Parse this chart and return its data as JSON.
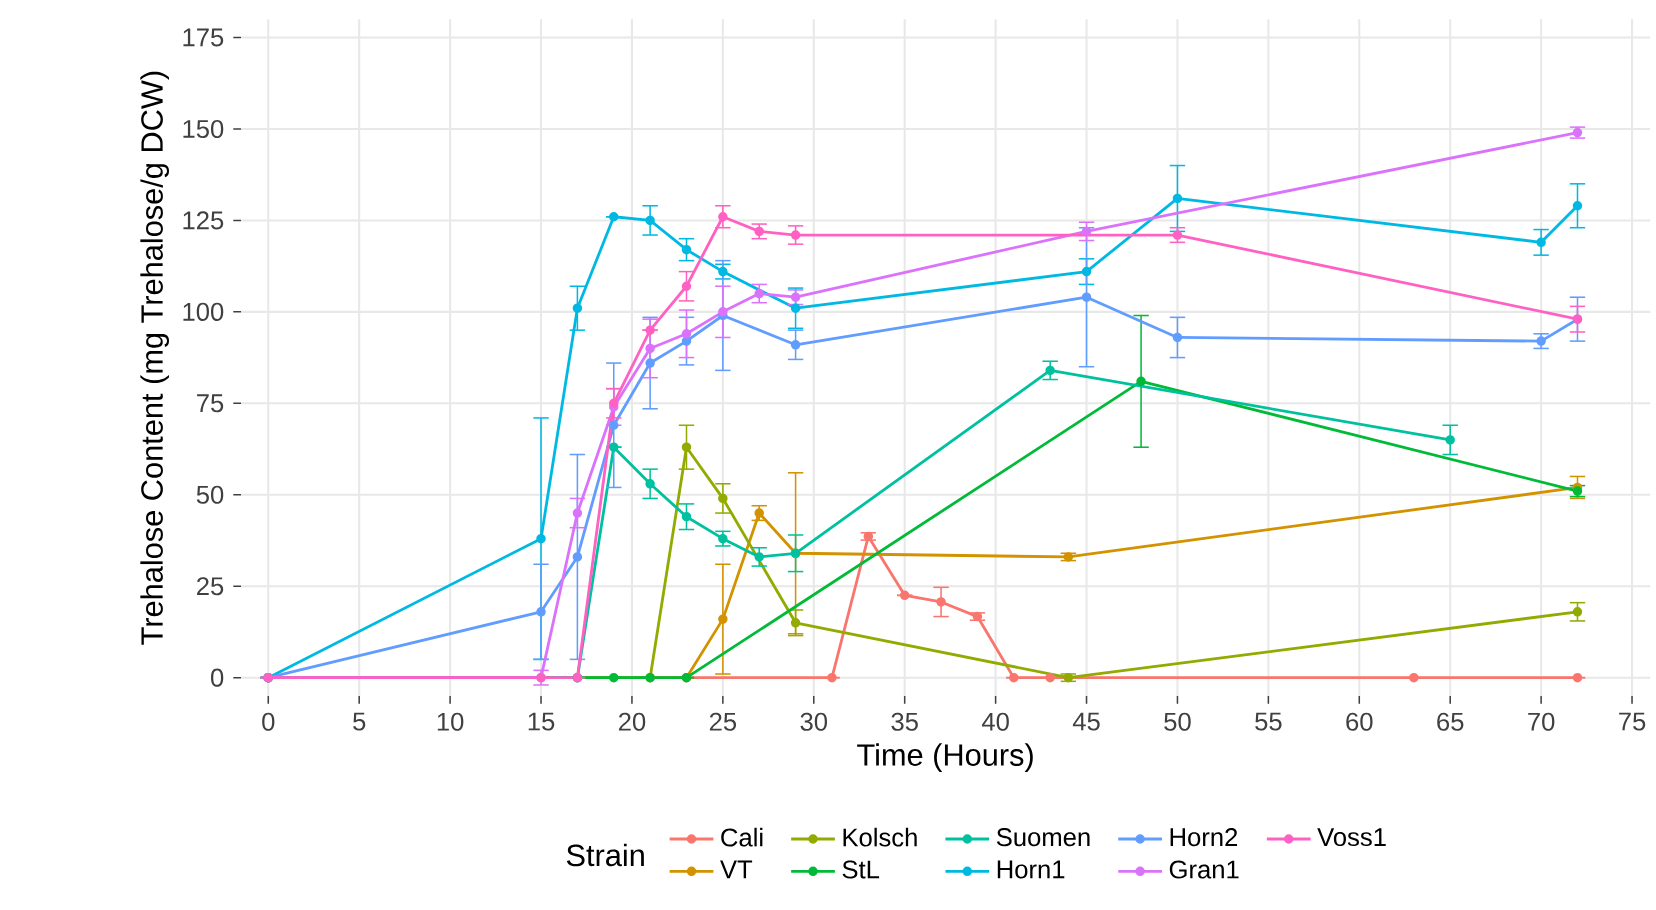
{
  "chart_data": {
    "type": "line",
    "xlabel": "Time (Hours)",
    "ylabel": "Trehalose Content (mg Trehalose/g DCW)",
    "legend_title": "Strain",
    "legend": "bottom",
    "grid": true,
    "marker": "circle",
    "line_style": "solid",
    "xlim": [
      -1.5,
      76
    ],
    "ylim": [
      -5,
      180
    ],
    "xticks": [
      0,
      5,
      10,
      15,
      20,
      25,
      30,
      35,
      40,
      45,
      50,
      55,
      60,
      65,
      70,
      75
    ],
    "yticks": [
      0,
      25,
      50,
      75,
      100,
      125,
      150,
      175
    ],
    "series": [
      {
        "name": "Cali",
        "color": "#f8766d",
        "x": [
          0,
          31,
          33,
          35,
          37,
          39,
          41,
          43,
          63,
          72
        ],
        "values": [
          0,
          0,
          38.6,
          22.5,
          20.7,
          16.7,
          0,
          0,
          0,
          0
        ],
        "errors": [
          null,
          null,
          1,
          null,
          4,
          1,
          null,
          null,
          null,
          null
        ]
      },
      {
        "name": "VT",
        "color": "#d39200",
        "x": [
          0,
          23,
          25,
          27,
          29,
          44,
          72
        ],
        "values": [
          0,
          0,
          16,
          45,
          34,
          33,
          52
        ],
        "errors": [
          null,
          null,
          15,
          2,
          22,
          1,
          3
        ]
      },
      {
        "name": "Kolsch",
        "color": "#93aa00",
        "x": [
          0,
          21,
          23,
          25,
          29,
          44,
          72
        ],
        "values": [
          0,
          0,
          63,
          49,
          15,
          0,
          18
        ],
        "errors": [
          null,
          null,
          6,
          4,
          3.5,
          1,
          2.5
        ]
      },
      {
        "name": "StL",
        "color": "#00ba38",
        "x": [
          0,
          17,
          19,
          21,
          23,
          48,
          72
        ],
        "values": [
          0,
          0,
          0,
          0,
          0,
          81,
          51
        ],
        "errors": [
          null,
          null,
          null,
          null,
          null,
          18,
          1.5
        ]
      },
      {
        "name": "Suomen",
        "color": "#00c19f",
        "x": [
          0,
          17,
          19,
          21,
          23,
          25,
          27,
          29,
          43,
          65
        ],
        "values": [
          0,
          0,
          63,
          53,
          44,
          38,
          33,
          34,
          84,
          65
        ],
        "errors": [
          null,
          null,
          null,
          4,
          3.5,
          2,
          2.5,
          5,
          2.5,
          4
        ]
      },
      {
        "name": "Horn1",
        "color": "#00b9e3",
        "x": [
          0,
          15,
          17,
          19,
          21,
          23,
          25,
          29,
          45,
          50,
          70,
          72
        ],
        "values": [
          0,
          38,
          101,
          126,
          125,
          117,
          111,
          101,
          111,
          131,
          119,
          129
        ],
        "errors": [
          null,
          33,
          6,
          null,
          4,
          3,
          2,
          5.5,
          3.5,
          9,
          3.5,
          6
        ]
      },
      {
        "name": "Horn2",
        "color": "#619cff",
        "x": [
          0,
          15,
          17,
          19,
          21,
          23,
          25,
          29,
          45,
          50,
          70,
          72
        ],
        "values": [
          0,
          18,
          33,
          69,
          86,
          92,
          99,
          91,
          104,
          93,
          92,
          98
        ],
        "errors": [
          null,
          13,
          28,
          17,
          12.5,
          6.5,
          15,
          4,
          19,
          5.5,
          2,
          6
        ]
      },
      {
        "name": "Gran1",
        "color": "#db72fb",
        "x": [
          0,
          15,
          17,
          19,
          21,
          23,
          25,
          27,
          29,
          45,
          72
        ],
        "values": [
          0,
          0,
          45,
          74,
          90,
          94,
          100,
          105,
          104,
          122,
          149
        ],
        "errors": [
          null,
          2,
          4,
          5,
          8,
          6.5,
          7,
          2.5,
          2,
          2.5,
          1.5
        ]
      },
      {
        "name": "Voss1",
        "color": "#ff61c3",
        "x": [
          0,
          15,
          17,
          19,
          21,
          23,
          25,
          27,
          29,
          50,
          72
        ],
        "values": [
          0,
          0,
          0,
          75,
          95,
          107,
          126,
          122,
          121,
          121,
          98
        ],
        "errors": [
          null,
          null,
          null,
          4,
          null,
          4,
          3,
          2,
          2.5,
          2,
          3.5
        ]
      }
    ]
  }
}
